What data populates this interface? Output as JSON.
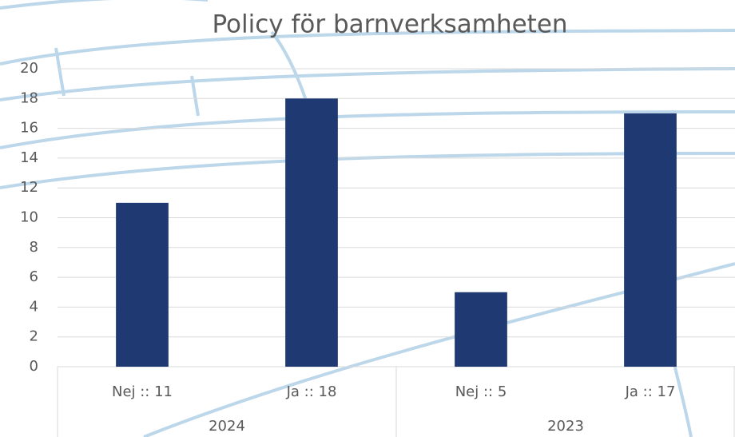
{
  "chart_data": {
    "type": "bar",
    "title": "Policy för barnverksamheten",
    "categories": [
      "Nej :: 11",
      "Ja :: 18",
      "Nej :: 5",
      "Ja :: 17"
    ],
    "groups": [
      "2024",
      "2023"
    ],
    "values": [
      11,
      18,
      5,
      17
    ],
    "color": "#1f3a73",
    "ylim": [
      0,
      20
    ],
    "yticks": [
      0,
      2,
      4,
      6,
      8,
      10,
      12,
      14,
      16,
      18,
      20
    ],
    "grid": true
  }
}
